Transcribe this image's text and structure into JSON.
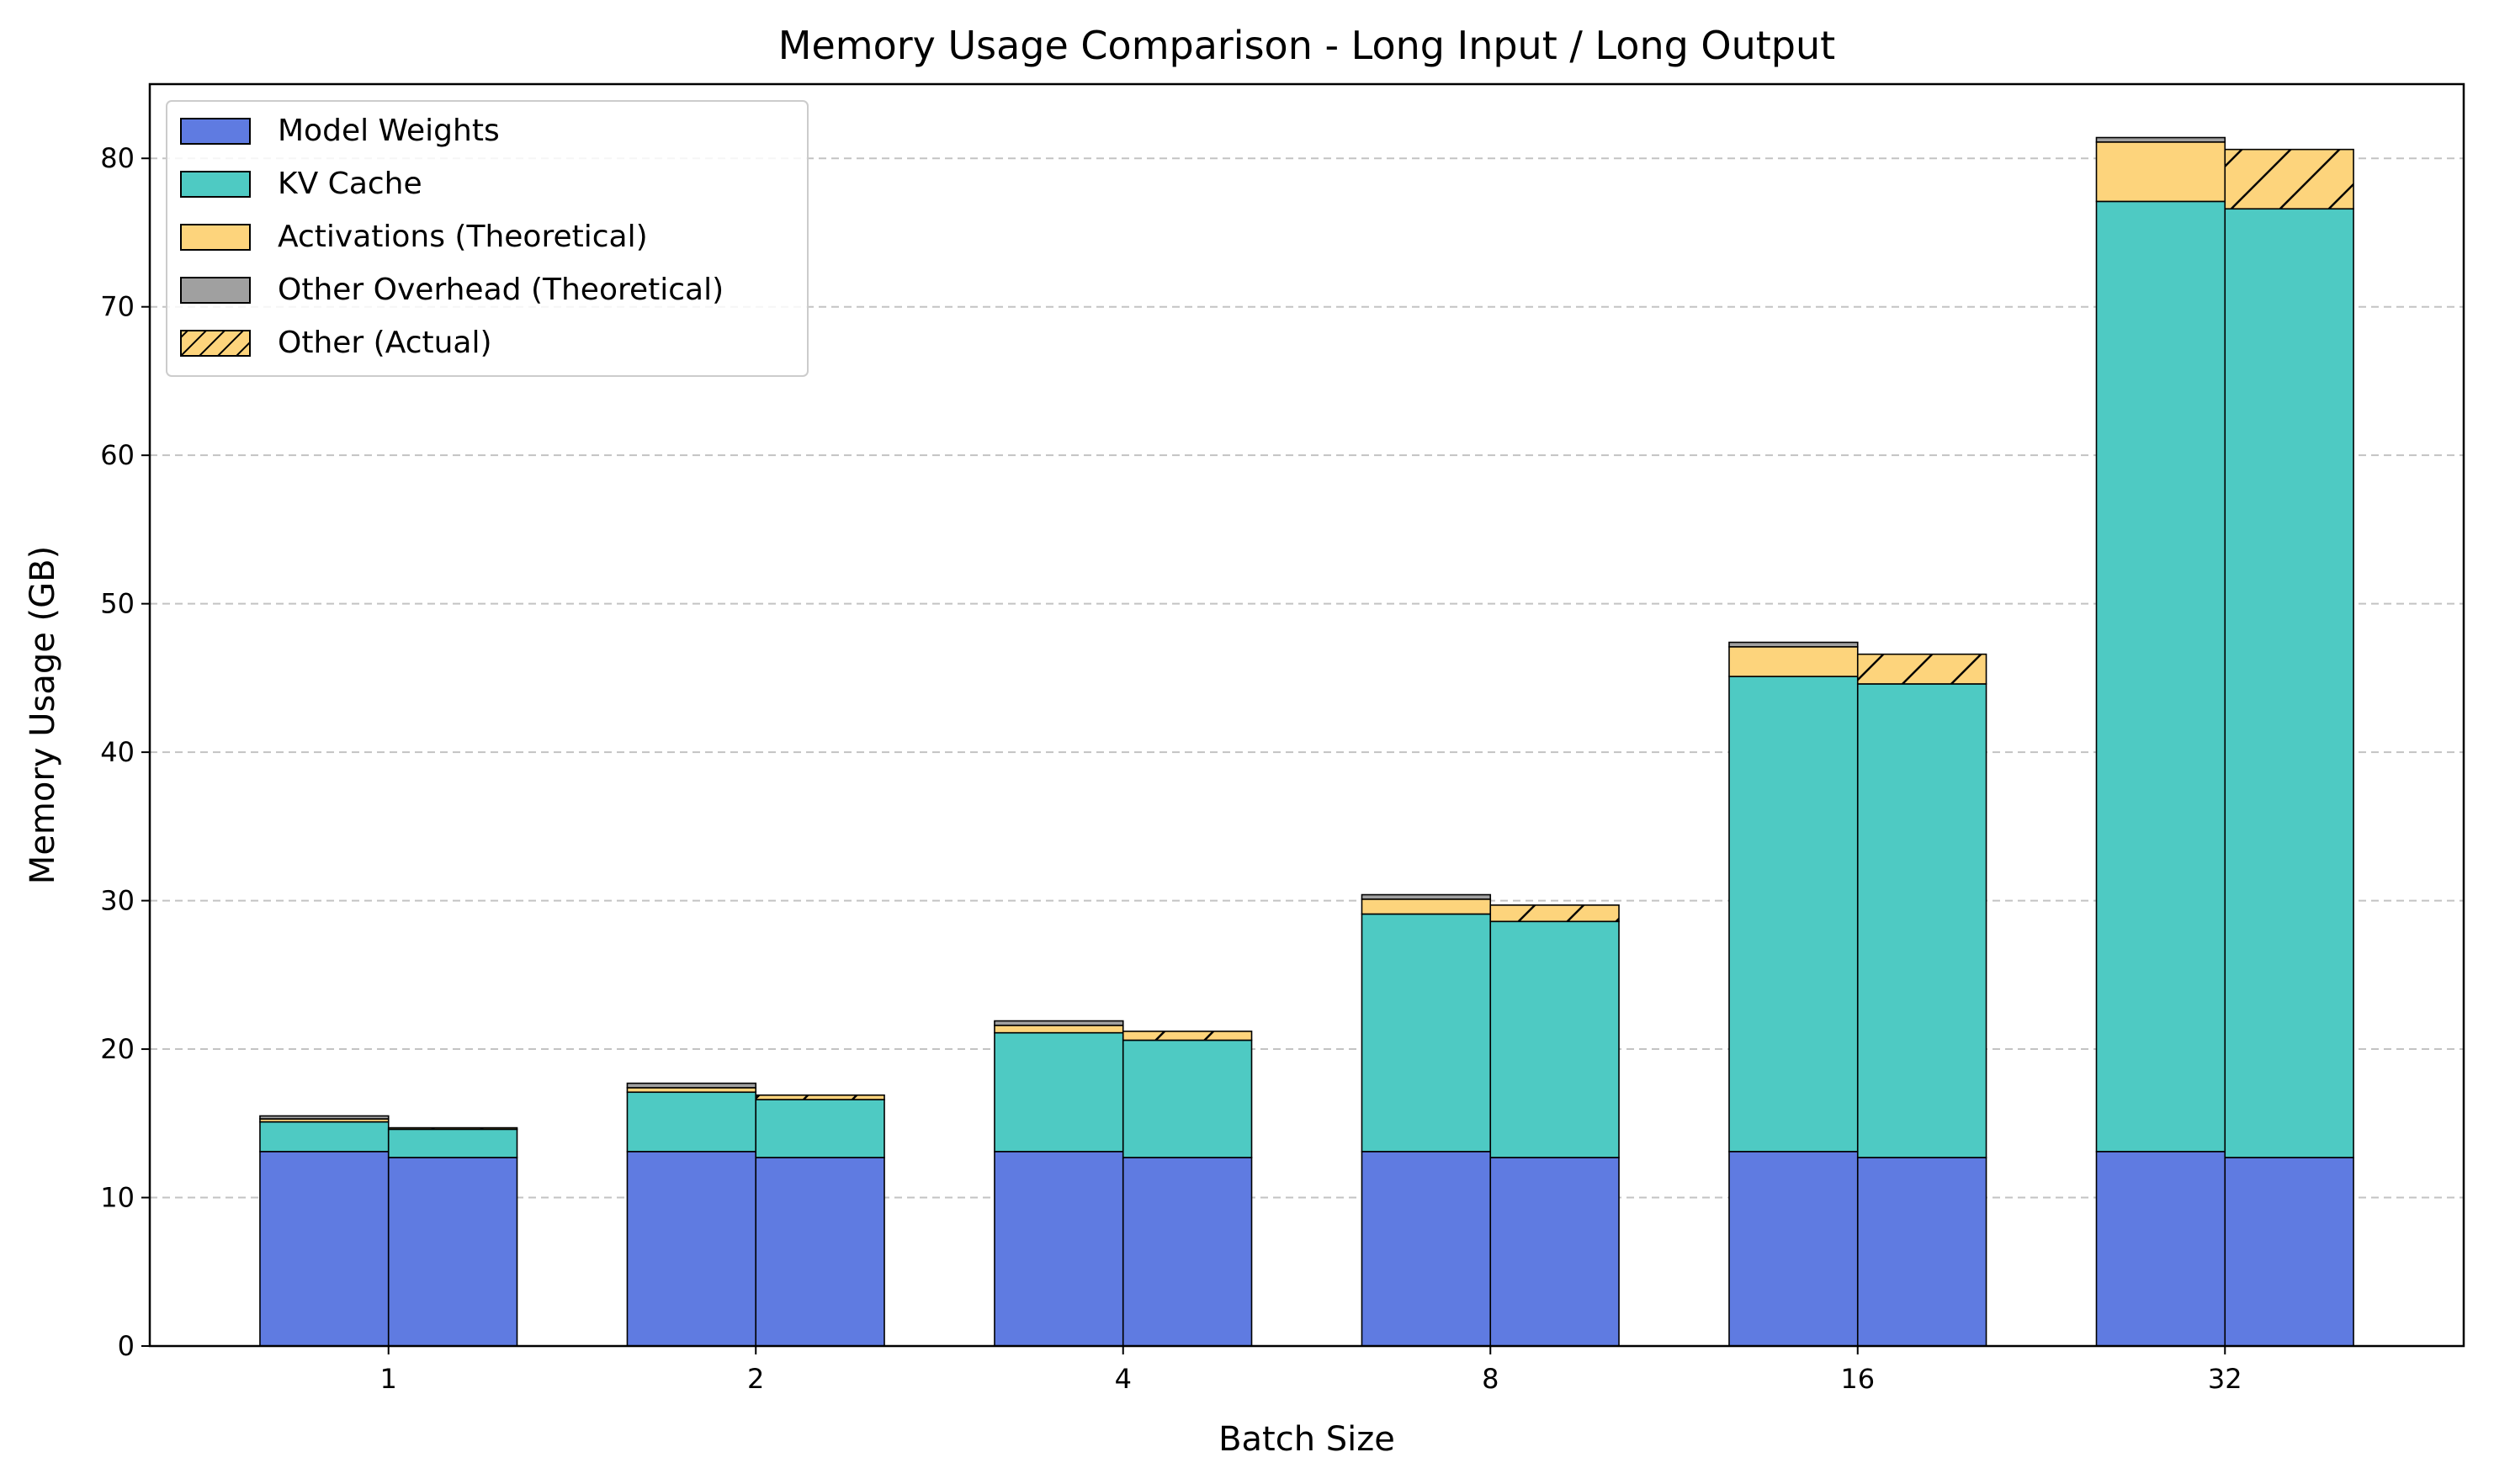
{
  "chart_data": {
    "type": "bar",
    "stacked": true,
    "grouped": true,
    "title": "Memory Usage Comparison - Long Input / Long Output",
    "xlabel": "Batch Size",
    "ylabel": "Memory Usage (GB)",
    "ylim": [
      0,
      85
    ],
    "yticks": [
      0,
      10,
      20,
      30,
      40,
      50,
      60,
      70,
      80
    ],
    "grid": "y-dashed",
    "legend_position": "top-left",
    "categories": [
      "1",
      "2",
      "4",
      "8",
      "16",
      "32"
    ],
    "legend": [
      {
        "key": "weights",
        "label": "Model Weights",
        "color": "#5f7be1",
        "hatch": false
      },
      {
        "key": "kv",
        "label": "KV Cache",
        "color": "#4ecac3",
        "hatch": false
      },
      {
        "key": "activations",
        "label": "Activations (Theoretical)",
        "color": "#fdd47c",
        "hatch": false
      },
      {
        "key": "other_theoretical",
        "label": "Other Overhead (Theoretical)",
        "color": "#a0a0a0",
        "hatch": false
      },
      {
        "key": "other_actual",
        "label": "Other (Actual)",
        "color": "#fdd47c",
        "hatch": true
      }
    ],
    "theoretical": {
      "Model Weights": [
        13.1,
        13.1,
        13.1,
        13.1,
        13.1,
        13.1
      ],
      "KV Cache": [
        2.0,
        4.0,
        8.0,
        16.0,
        32.0,
        64.0
      ],
      "Activations (Theoretical)": [
        0.2,
        0.3,
        0.5,
        1.0,
        2.0,
        4.0
      ],
      "Other Overhead (Theoretical)": [
        0.2,
        0.3,
        0.3,
        0.3,
        0.3,
        0.3
      ]
    },
    "actual": {
      "Model Weights": [
        12.7,
        12.7,
        12.7,
        12.7,
        12.7,
        12.7
      ],
      "KV Cache": [
        1.9,
        3.9,
        7.9,
        15.9,
        31.9,
        63.9
      ],
      "Other (Actual)": [
        0.1,
        0.3,
        0.6,
        1.1,
        2.0,
        4.0
      ]
    }
  }
}
